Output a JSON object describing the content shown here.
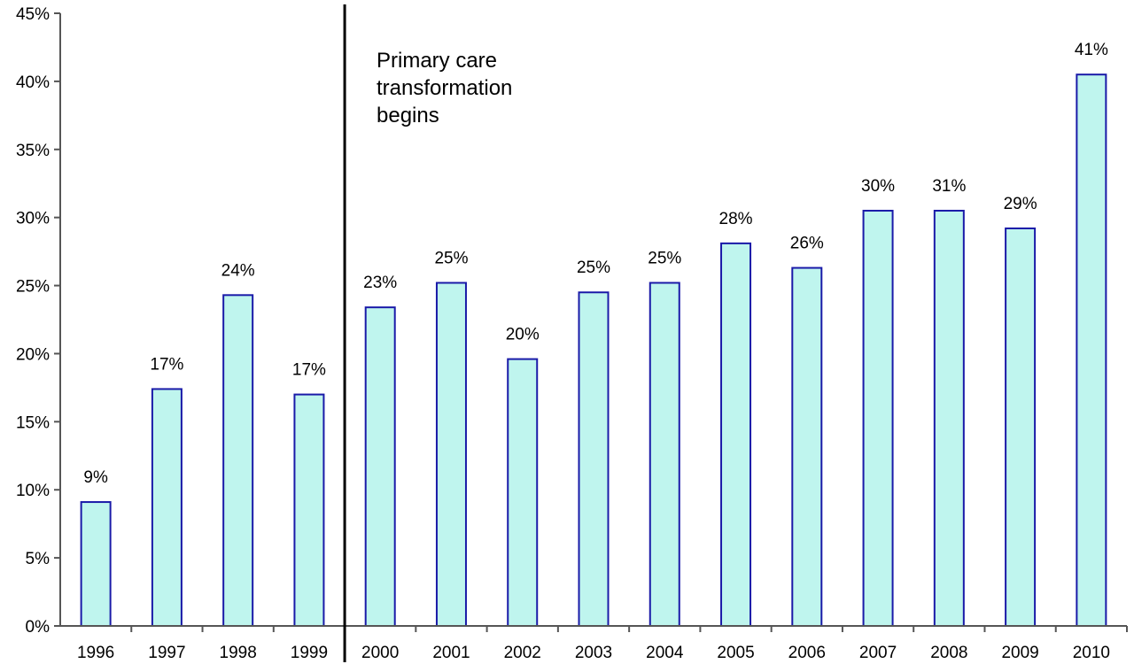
{
  "chart_data": {
    "type": "bar",
    "categories": [
      "1996",
      "1997",
      "1998",
      "1999",
      "2000",
      "2001",
      "2002",
      "2003",
      "2004",
      "2005",
      "2006",
      "2007",
      "2008",
      "2009",
      "2010"
    ],
    "values": [
      9.1,
      17.4,
      24.3,
      17.0,
      23.4,
      25.2,
      19.6,
      24.5,
      25.2,
      28.1,
      26.3,
      30.5,
      30.5,
      29.2,
      40.5
    ],
    "data_labels": [
      "9%",
      "17%",
      "24%",
      "17%",
      "23%",
      "25%",
      "20%",
      "25%",
      "25%",
      "28%",
      "26%",
      "30%",
      "31%",
      "29%",
      "41%"
    ],
    "ylim": [
      0,
      45
    ],
    "yticks": [
      0,
      5,
      10,
      15,
      20,
      25,
      30,
      35,
      40,
      45
    ],
    "ytick_labels": [
      "0%",
      "5%",
      "10%",
      "15%",
      "20%",
      "25%",
      "30%",
      "35%",
      "40%",
      "45%"
    ],
    "title": "",
    "xlabel": "",
    "ylabel": "",
    "grid": false,
    "legend": "none",
    "bar_fill": "#bff5ee",
    "bar_stroke": "#1a1aa8",
    "axis_color": "#555555",
    "divider": {
      "after_category": "1999",
      "color": "#000000"
    },
    "annotation": {
      "lines": [
        "Primary care",
        "transformation",
        "begins"
      ]
    }
  }
}
